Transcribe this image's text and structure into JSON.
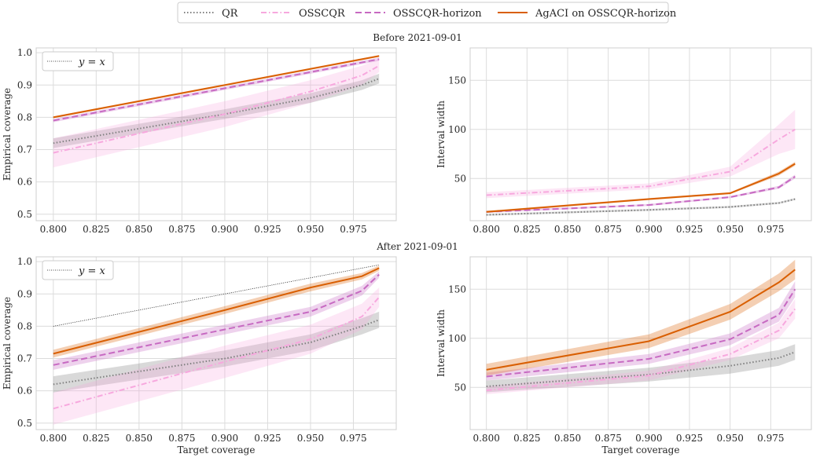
{
  "legend": {
    "items": [
      {
        "label": "QR",
        "color": "#808080",
        "dash": "dotted"
      },
      {
        "label": "OSSCQR",
        "color": "#f7a8de",
        "dash": "dashdot"
      },
      {
        "label": "OSSCQR-horizon",
        "color": "#c76ac2",
        "dash": "dashed"
      },
      {
        "label": "AgACI on OSSCQR-horizon",
        "color": "#d95f02",
        "dash": "solid"
      }
    ]
  },
  "xlabel": "Target coverage",
  "chart_data": [
    {
      "type": "line",
      "panel_title": "Before 2021-09-01",
      "ylabel": "Empirical coverage",
      "xlim": [
        0.79,
        1.0
      ],
      "ylim": [
        0.48,
        1.015
      ],
      "xticks": [
        "0.800",
        "0.825",
        "0.850",
        "0.875",
        "0.900",
        "0.925",
        "0.950",
        "0.975"
      ],
      "yticks": [
        "0.5",
        "0.6",
        "0.7",
        "0.8",
        "0.9",
        "1.0"
      ],
      "identity_label": "y = x",
      "x": [
        0.8,
        0.9,
        0.95,
        0.98,
        0.99
      ],
      "series": [
        {
          "name": "QR",
          "values": [
            0.72,
            0.81,
            0.86,
            0.9,
            0.92
          ],
          "band": [
            0.015,
            0.015,
            0.015,
            0.015,
            0.015
          ]
        },
        {
          "name": "OSSCQR",
          "values": [
            0.69,
            0.81,
            0.88,
            0.93,
            0.96
          ],
          "band": [
            0.045,
            0.04,
            0.035,
            0.03,
            0.02
          ]
        },
        {
          "name": "OSSCQR-horizon",
          "values": [
            0.79,
            0.89,
            0.94,
            0.97,
            0.98
          ],
          "band": [
            0.005,
            0.005,
            0.005,
            0.005,
            0.005
          ]
        },
        {
          "name": "AgACI on OSSCQR-horizon",
          "values": [
            0.8,
            0.9,
            0.95,
            0.98,
            0.99
          ],
          "band": [
            0.003,
            0.003,
            0.003,
            0.003,
            0.003
          ]
        }
      ]
    },
    {
      "type": "line",
      "panel_title": "",
      "ylabel": "Interval width",
      "xlim": [
        0.79,
        1.0
      ],
      "ylim": [
        7,
        183
      ],
      "xticks": [
        "0.800",
        "0.825",
        "0.850",
        "0.875",
        "0.900",
        "0.925",
        "0.950",
        "0.975"
      ],
      "yticks": [
        "50",
        "100",
        "150"
      ],
      "x": [
        0.8,
        0.9,
        0.95,
        0.98,
        0.99
      ],
      "series": [
        {
          "name": "QR",
          "values": [
            13,
            18,
            21,
            25,
            29
          ],
          "band": [
            1,
            1,
            1,
            1,
            1
          ]
        },
        {
          "name": "OSSCQR",
          "values": [
            33,
            42,
            57,
            90,
            100
          ],
          "band": [
            3,
            3,
            5,
            15,
            20
          ]
        },
        {
          "name": "OSSCQR-horizon",
          "values": [
            16,
            23,
            31,
            41,
            52
          ],
          "band": [
            1,
            1,
            1,
            1.5,
            2
          ]
        },
        {
          "name": "AgACI on OSSCQR-horizon",
          "values": [
            16,
            29,
            35,
            55,
            65
          ],
          "band": [
            1,
            1,
            1,
            2,
            2
          ]
        }
      ]
    },
    {
      "type": "line",
      "panel_title": "After 2021-09-01",
      "ylabel": "Empirical coverage",
      "xlim": [
        0.79,
        1.0
      ],
      "ylim": [
        0.48,
        1.015
      ],
      "xticks": [
        "0.800",
        "0.825",
        "0.850",
        "0.875",
        "0.900",
        "0.925",
        "0.950",
        "0.975"
      ],
      "yticks": [
        "0.5",
        "0.6",
        "0.7",
        "0.8",
        "0.9",
        "1.0"
      ],
      "identity_label": "y = x",
      "x": [
        0.8,
        0.9,
        0.95,
        0.98,
        0.99
      ],
      "series": [
        {
          "name": "QR",
          "values": [
            0.62,
            0.7,
            0.75,
            0.8,
            0.82
          ],
          "band": [
            0.025,
            0.025,
            0.025,
            0.025,
            0.025
          ]
        },
        {
          "name": "OSSCQR",
          "values": [
            0.545,
            0.69,
            0.76,
            0.83,
            0.89
          ],
          "band": [
            0.05,
            0.05,
            0.045,
            0.04,
            0.03
          ]
        },
        {
          "name": "OSSCQR-horizon",
          "values": [
            0.68,
            0.79,
            0.845,
            0.91,
            0.96
          ],
          "band": [
            0.015,
            0.015,
            0.015,
            0.015,
            0.01
          ]
        },
        {
          "name": "AgACI on OSSCQR-horizon",
          "values": [
            0.715,
            0.85,
            0.92,
            0.955,
            0.98
          ],
          "band": [
            0.012,
            0.012,
            0.012,
            0.01,
            0.008
          ]
        }
      ]
    },
    {
      "type": "line",
      "panel_title": "",
      "ylabel": "Interval width",
      "xlim": [
        0.79,
        1.0
      ],
      "ylim": [
        7,
        183
      ],
      "xticks": [
        "0.800",
        "0.825",
        "0.850",
        "0.875",
        "0.900",
        "0.925",
        "0.950",
        "0.975"
      ],
      "yticks": [
        "50",
        "100",
        "150"
      ],
      "x": [
        0.8,
        0.9,
        0.95,
        0.98,
        0.99
      ],
      "series": [
        {
          "name": "QR",
          "values": [
            51,
            63,
            72,
            80,
            86
          ],
          "band": [
            6,
            7,
            8,
            8,
            8
          ]
        },
        {
          "name": "OSSCQR",
          "values": [
            47,
            62,
            84,
            108,
            130
          ],
          "band": [
            4,
            5,
            6,
            8,
            10
          ]
        },
        {
          "name": "OSSCQR-horizon",
          "values": [
            61,
            79,
            99,
            124,
            150
          ],
          "band": [
            4,
            5,
            6,
            7,
            8
          ]
        },
        {
          "name": "AgACI on OSSCQR-horizon",
          "values": [
            68,
            97,
            127,
            157,
            170
          ],
          "band": [
            6,
            7,
            8,
            9,
            10
          ]
        }
      ]
    }
  ]
}
